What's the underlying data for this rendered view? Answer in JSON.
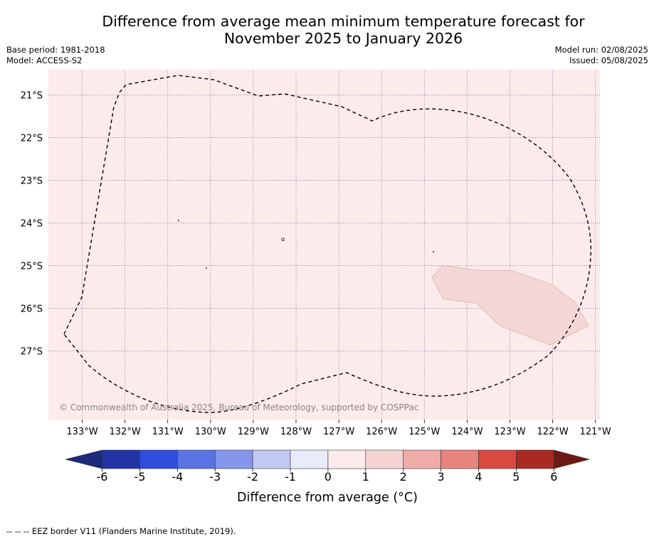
{
  "title": {
    "line1": "Difference from average mean minimum temperature forecast for",
    "line2": "November 2025 to January 2026"
  },
  "meta_left": {
    "base_period": "Base period: 1981-2018",
    "model": "Model: ACCESS-S2"
  },
  "meta_right": {
    "model_run": "Model run: 02/08/2025",
    "issued": "Issued: 05/08/2025"
  },
  "map": {
    "copyright": "© Commonwealth of Australia 2025, Bureau of Meteorology, supported by COSPPac",
    "background_color": "#fbebea",
    "region_color": "#f3d6d5",
    "lon_labels": [
      "133°W",
      "132°W",
      "131°W",
      "130°W",
      "129°W",
      "128°W",
      "127°W",
      "126°W",
      "125°W",
      "124°W",
      "123°W",
      "122°W",
      "121°W"
    ],
    "lat_labels": [
      "21°S",
      "22°S",
      "23°S",
      "24°S",
      "25°S",
      "26°S",
      "27°S"
    ],
    "island_label": "ɑ"
  },
  "colorbar": {
    "title": "Difference from average (°C)",
    "ticks": [
      "-6",
      "-5",
      "-4",
      "-3",
      "-2",
      "-1",
      "0",
      "1",
      "2",
      "3",
      "4",
      "5",
      "6"
    ],
    "colors": [
      "#2234a8",
      "#2f4ee0",
      "#5a74e6",
      "#8597ec",
      "#c2c8f4",
      "#e8ebfa",
      "#fbebea",
      "#f4d4d3",
      "#eeaba8",
      "#e8847e",
      "#d94a40",
      "#a82a22"
    ],
    "under_color": "#1c2a7c",
    "over_color": "#6e1a14"
  },
  "footer": "--  --  -- EEZ border V11 (Flanders Marine Institute, 2019)."
}
